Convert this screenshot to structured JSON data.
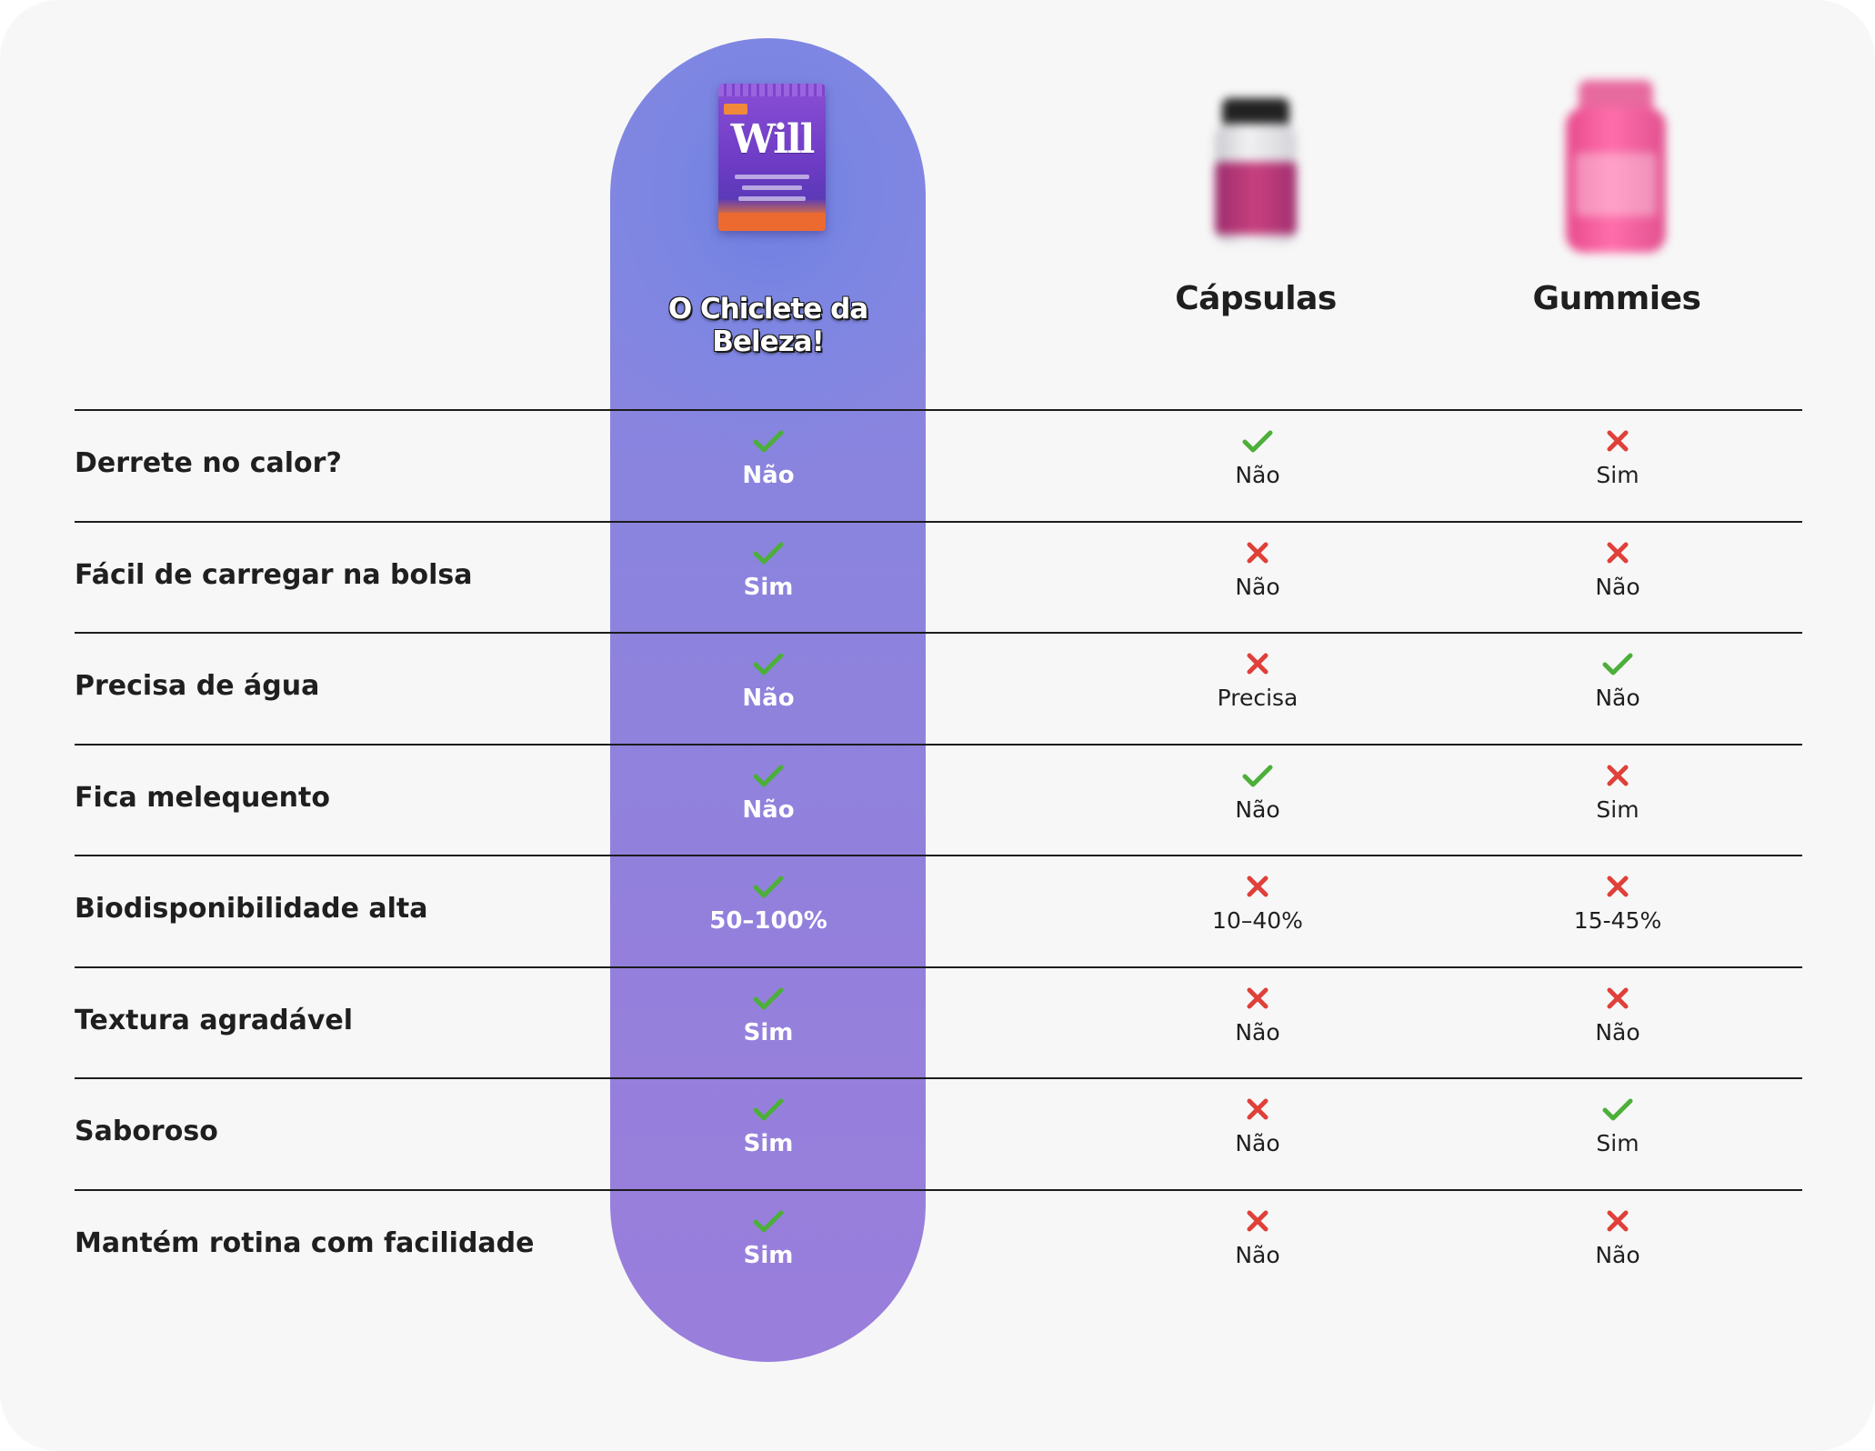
{
  "columns": {
    "product": {
      "title": "O Chiclete da Beleza!",
      "image": "will-gum-pouch",
      "pouch_brand": "Will"
    },
    "capsulas": {
      "title": "Cápsulas",
      "image": "capsule-bottle"
    },
    "gummies": {
      "title": "Gummies",
      "image": "gummies-bottle"
    }
  },
  "icons": {
    "check": "check-icon",
    "cross": "cross-icon"
  },
  "colors": {
    "check": "#4caf3a",
    "cross": "#e0403a",
    "pill_top": "#7b86e2",
    "pill_bottom": "#9a7edc"
  },
  "rows": [
    {
      "label": "Derrete no calor?",
      "product": {
        "ok": true,
        "value": "Não"
      },
      "capsulas": {
        "ok": true,
        "value": "Não"
      },
      "gummies": {
        "ok": false,
        "value": "Sim"
      }
    },
    {
      "label": "Fácil de carregar na bolsa",
      "product": {
        "ok": true,
        "value": "Sim"
      },
      "capsulas": {
        "ok": false,
        "value": "Não"
      },
      "gummies": {
        "ok": false,
        "value": "Não"
      }
    },
    {
      "label": "Precisa de água",
      "product": {
        "ok": true,
        "value": "Não"
      },
      "capsulas": {
        "ok": false,
        "value": "Precisa"
      },
      "gummies": {
        "ok": true,
        "value": "Não"
      }
    },
    {
      "label": "Fica melequento",
      "product": {
        "ok": true,
        "value": "Não"
      },
      "capsulas": {
        "ok": true,
        "value": "Não"
      },
      "gummies": {
        "ok": false,
        "value": "Sim"
      }
    },
    {
      "label": "Biodisponibilidade alta",
      "product": {
        "ok": true,
        "value": "50–100%"
      },
      "capsulas": {
        "ok": false,
        "value": "10–40%"
      },
      "gummies": {
        "ok": false,
        "value": "15-45%"
      }
    },
    {
      "label": "Textura agradável",
      "product": {
        "ok": true,
        "value": "Sim"
      },
      "capsulas": {
        "ok": false,
        "value": "Não"
      },
      "gummies": {
        "ok": false,
        "value": "Não"
      }
    },
    {
      "label": "Saboroso",
      "product": {
        "ok": true,
        "value": "Sim"
      },
      "capsulas": {
        "ok": false,
        "value": "Não"
      },
      "gummies": {
        "ok": true,
        "value": "Sim"
      }
    },
    {
      "label": "Mantém rotina com facilidade",
      "product": {
        "ok": true,
        "value": "Sim"
      },
      "capsulas": {
        "ok": false,
        "value": "Não"
      },
      "gummies": {
        "ok": false,
        "value": "Não"
      }
    }
  ]
}
